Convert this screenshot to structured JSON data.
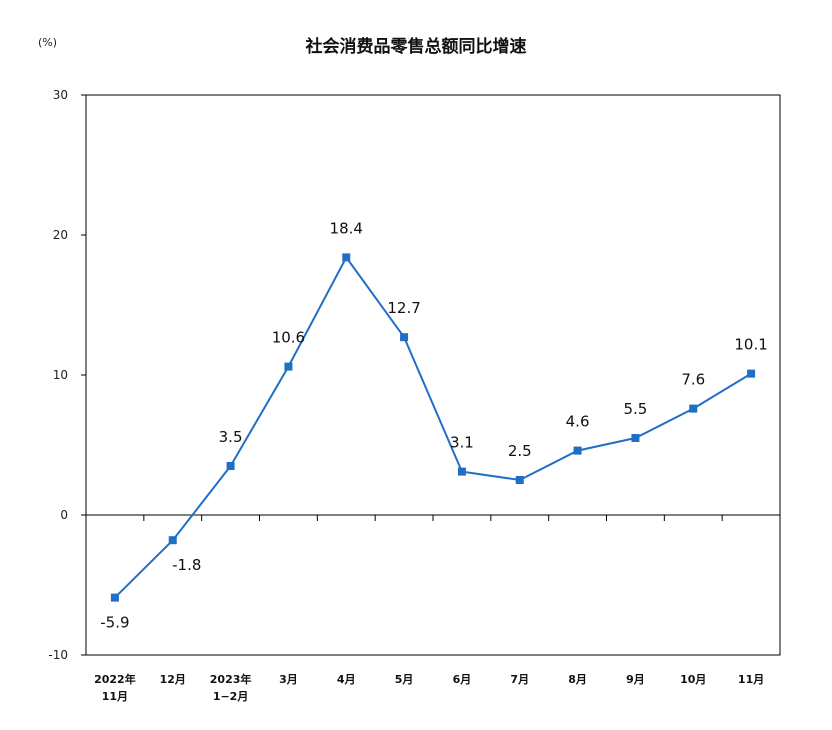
{
  "chart_data": {
    "type": "line",
    "title": "社会消费品零售总额同比增速",
    "unit_label": "(%)",
    "ylim": [
      -10,
      30
    ],
    "yticks": [
      "-10",
      "0",
      "10",
      "20",
      "30"
    ],
    "categories": [
      [
        "2022年",
        "11月"
      ],
      [
        "12月"
      ],
      [
        "2023年",
        "1−2月"
      ],
      [
        "3月"
      ],
      [
        "4月"
      ],
      [
        "5月"
      ],
      [
        "6月"
      ],
      [
        "7月"
      ],
      [
        "8月"
      ],
      [
        "9月"
      ],
      [
        "10月"
      ],
      [
        "11月"
      ]
    ],
    "values": [
      -5.9,
      -1.8,
      3.5,
      10.6,
      18.4,
      12.7,
      3.1,
      2.5,
      4.6,
      5.5,
      7.6,
      10.1
    ],
    "value_labels": [
      "-5.9",
      "-1.8",
      "3.5",
      "10.6",
      "18.4",
      "12.7",
      "3.1",
      "2.5",
      "4.6",
      "5.5",
      "7.6",
      "10.1"
    ],
    "grid": false,
    "legend": "none",
    "line_color": "#1f6fc6"
  }
}
